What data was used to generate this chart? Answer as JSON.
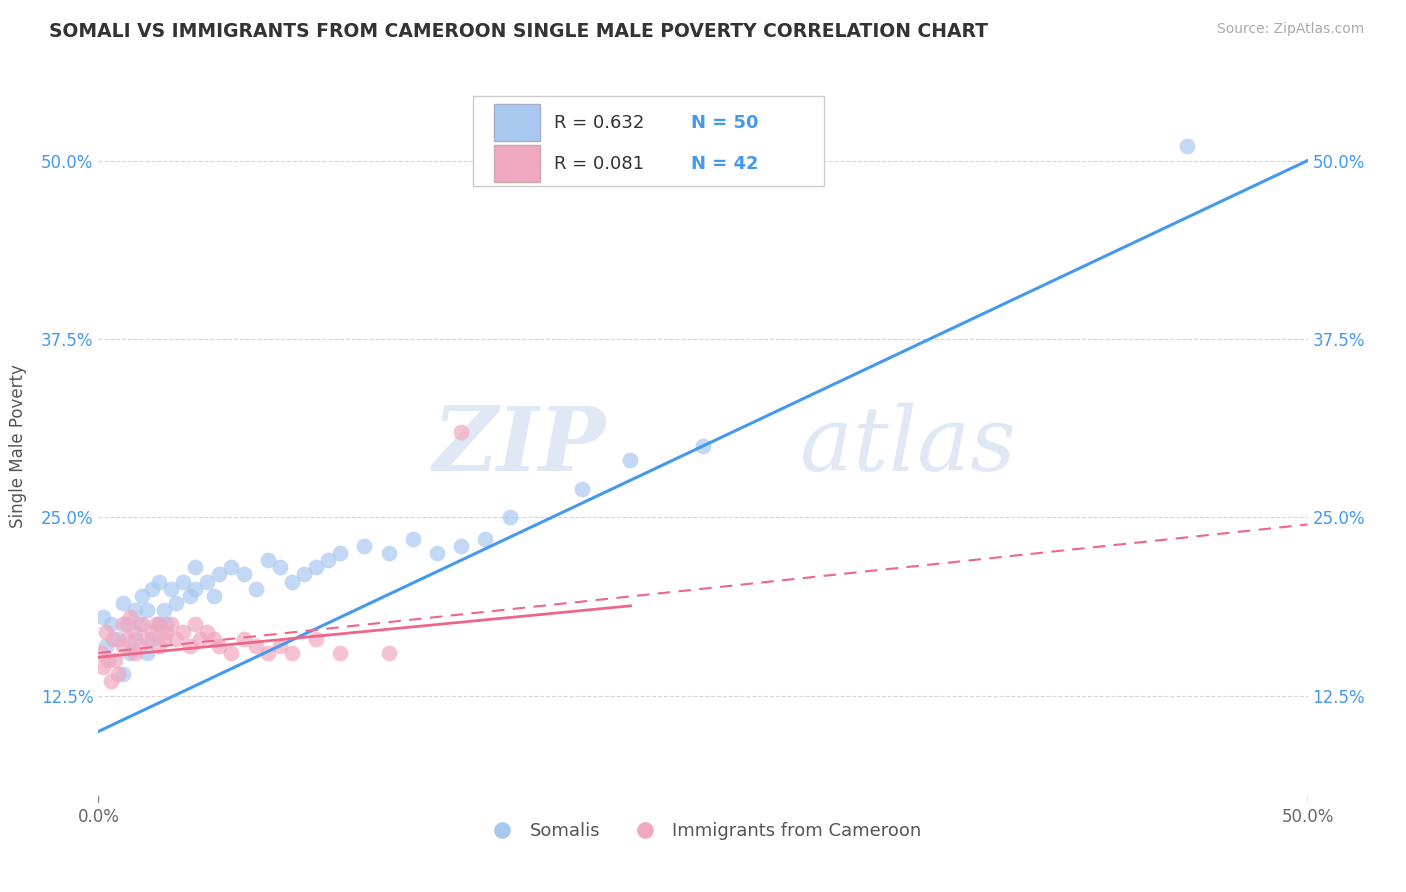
{
  "title": "SOMALI VS IMMIGRANTS FROM CAMEROON SINGLE MALE POVERTY CORRELATION CHART",
  "source": "Source: ZipAtlas.com",
  "ylabel": "Single Male Poverty",
  "xlim": [
    0.0,
    0.5
  ],
  "ylim": [
    0.05,
    0.55
  ],
  "ytick_labels": [
    "12.5%",
    "25.0%",
    "37.5%",
    "50.0%"
  ],
  "ytick_positions": [
    0.125,
    0.25,
    0.375,
    0.5
  ],
  "xtick_labels": [
    "0.0%",
    "50.0%"
  ],
  "xtick_positions": [
    0.0,
    0.5
  ],
  "r_somali": 0.632,
  "n_somali": 50,
  "r_cameroon": 0.081,
  "n_cameroon": 42,
  "somali_color": "#a8c8f0",
  "cameroon_color": "#f0a8c0",
  "line_somali_color": "#4499ee",
  "line_cameroon_color": "#ee6688",
  "background_color": "#ffffff",
  "grid_color": "#cccccc",
  "watermark_zip": "ZIP",
  "watermark_atlas": "atlas",
  "legend_label_1": "R = 0.632   N = 50",
  "legend_label_2": "R = 0.081   N = 42",
  "bottom_label_1": "Somalis",
  "bottom_label_2": "Immigrants from Cameroon",
  "somali_x": [
    0.002,
    0.003,
    0.005,
    0.008,
    0.01,
    0.01,
    0.012,
    0.013,
    0.015,
    0.015,
    0.017,
    0.018,
    0.02,
    0.02,
    0.022,
    0.022,
    0.025,
    0.025,
    0.027,
    0.028,
    0.03,
    0.032,
    0.035,
    0.038,
    0.04,
    0.04,
    0.045,
    0.048,
    0.05,
    0.055,
    0.06,
    0.065,
    0.07,
    0.075,
    0.08,
    0.085,
    0.09,
    0.095,
    0.1,
    0.11,
    0.12,
    0.13,
    0.14,
    0.15,
    0.16,
    0.17,
    0.2,
    0.22,
    0.25,
    0.45
  ],
  "somali_y": [
    0.18,
    0.16,
    0.175,
    0.165,
    0.14,
    0.19,
    0.175,
    0.155,
    0.185,
    0.165,
    0.175,
    0.195,
    0.155,
    0.185,
    0.165,
    0.2,
    0.175,
    0.205,
    0.185,
    0.175,
    0.2,
    0.19,
    0.205,
    0.195,
    0.2,
    0.215,
    0.205,
    0.195,
    0.21,
    0.215,
    0.21,
    0.2,
    0.22,
    0.215,
    0.205,
    0.21,
    0.215,
    0.22,
    0.225,
    0.23,
    0.225,
    0.235,
    0.225,
    0.23,
    0.235,
    0.25,
    0.27,
    0.29,
    0.3,
    0.51
  ],
  "cameroon_x": [
    0.001,
    0.002,
    0.003,
    0.004,
    0.005,
    0.006,
    0.007,
    0.008,
    0.01,
    0.01,
    0.012,
    0.013,
    0.015,
    0.015,
    0.017,
    0.018,
    0.02,
    0.022,
    0.024,
    0.025,
    0.025,
    0.027,
    0.028,
    0.03,
    0.032,
    0.035,
    0.038,
    0.04,
    0.042,
    0.045,
    0.048,
    0.05,
    0.055,
    0.06,
    0.065,
    0.07,
    0.075,
    0.08,
    0.09,
    0.1,
    0.12,
    0.15
  ],
  "cameroon_y": [
    0.155,
    0.145,
    0.17,
    0.15,
    0.135,
    0.165,
    0.15,
    0.14,
    0.16,
    0.175,
    0.165,
    0.18,
    0.155,
    0.17,
    0.16,
    0.175,
    0.165,
    0.17,
    0.175,
    0.16,
    0.175,
    0.165,
    0.17,
    0.175,
    0.165,
    0.17,
    0.16,
    0.175,
    0.165,
    0.17,
    0.165,
    0.16,
    0.155,
    0.165,
    0.16,
    0.155,
    0.16,
    0.155,
    0.165,
    0.155,
    0.155,
    0.31
  ]
}
